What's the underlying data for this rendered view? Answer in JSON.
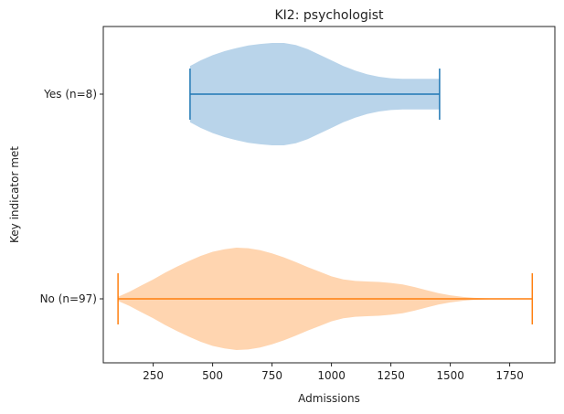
{
  "chart_data": {
    "type": "violin",
    "orientation": "horizontal",
    "title": "KI2: psychologist",
    "xlabel": "Admissions",
    "ylabel": "Key indicator met",
    "xlim": [
      40,
      1940
    ],
    "xticks": [
      250,
      500,
      750,
      1000,
      1250,
      1500,
      1750
    ],
    "grid": false,
    "series": [
      {
        "name": "Yes (n=8)",
        "min": 405,
        "max": 1455,
        "fill_color": "#b9d4ea",
        "line_color": "#1f77b4",
        "density": [
          [
            405,
            0.55
          ],
          [
            450,
            0.66
          ],
          [
            500,
            0.76
          ],
          [
            550,
            0.84
          ],
          [
            600,
            0.9
          ],
          [
            650,
            0.95
          ],
          [
            700,
            0.98
          ],
          [
            750,
            1.0
          ],
          [
            800,
            1.0
          ],
          [
            850,
            0.96
          ],
          [
            900,
            0.88
          ],
          [
            950,
            0.77
          ],
          [
            1000,
            0.66
          ],
          [
            1050,
            0.55
          ],
          [
            1100,
            0.46
          ],
          [
            1150,
            0.39
          ],
          [
            1200,
            0.34
          ],
          [
            1250,
            0.31
          ],
          [
            1300,
            0.3
          ],
          [
            1350,
            0.3
          ],
          [
            1400,
            0.3
          ],
          [
            1455,
            0.3
          ]
        ]
      },
      {
        "name": "No (n=97)",
        "min": 102,
        "max": 1845,
        "fill_color": "#ffd5b0",
        "line_color": "#ff7f0e",
        "density": [
          [
            102,
            0.04
          ],
          [
            150,
            0.14
          ],
          [
            200,
            0.26
          ],
          [
            250,
            0.38
          ],
          [
            300,
            0.51
          ],
          [
            350,
            0.63
          ],
          [
            400,
            0.74
          ],
          [
            450,
            0.84
          ],
          [
            500,
            0.92
          ],
          [
            550,
            0.97
          ],
          [
            600,
            1.0
          ],
          [
            650,
            0.99
          ],
          [
            700,
            0.95
          ],
          [
            750,
            0.89
          ],
          [
            800,
            0.81
          ],
          [
            850,
            0.72
          ],
          [
            900,
            0.62
          ],
          [
            950,
            0.53
          ],
          [
            1000,
            0.44
          ],
          [
            1050,
            0.38
          ],
          [
            1100,
            0.35
          ],
          [
            1150,
            0.34
          ],
          [
            1200,
            0.33
          ],
          [
            1250,
            0.31
          ],
          [
            1300,
            0.28
          ],
          [
            1350,
            0.23
          ],
          [
            1400,
            0.17
          ],
          [
            1450,
            0.11
          ],
          [
            1500,
            0.07
          ],
          [
            1550,
            0.04
          ],
          [
            1600,
            0.02
          ],
          [
            1650,
            0.01
          ],
          [
            1700,
            0.005
          ],
          [
            1750,
            0.003
          ],
          [
            1800,
            0.001
          ],
          [
            1845,
            0.0
          ]
        ]
      }
    ]
  }
}
